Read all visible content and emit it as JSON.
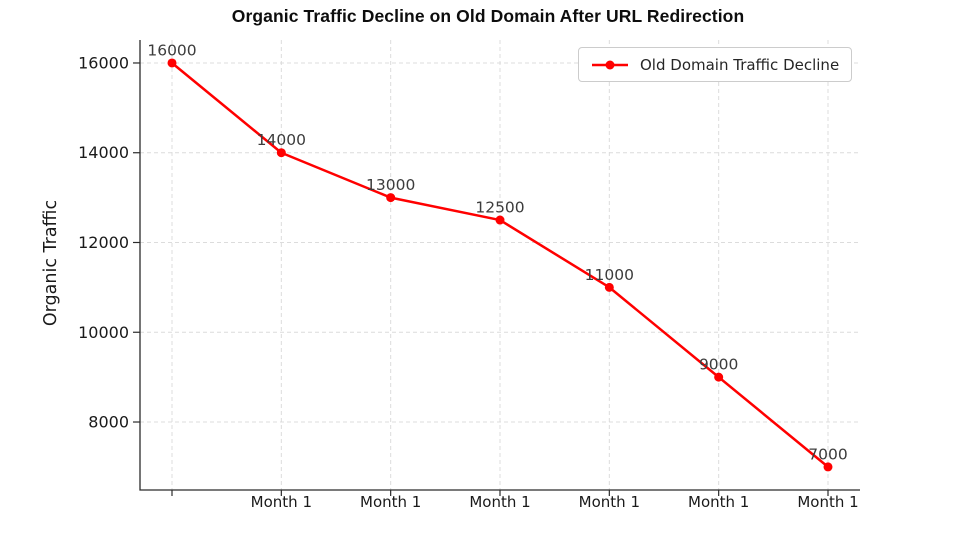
{
  "chart_data": {
    "type": "line",
    "title": "Organic Traffic Decline on Old Domain After URL Redirection",
    "xlabel": "",
    "ylabel": "Organic Traffic",
    "x_tick_labels": [
      "",
      "Month 1",
      "Month 1",
      "Month 1",
      "Month 1",
      "Month 1",
      "Month 1"
    ],
    "y_ticks": [
      8000,
      10000,
      12000,
      14000,
      16000
    ],
    "y_tick_labels": [
      "8000",
      "10000",
      "12000",
      "14000",
      "16000"
    ],
    "ylim": [
      6485,
      16512
    ],
    "grid": true,
    "grid_style": "dashed",
    "legend": {
      "position": "upper right"
    },
    "series": [
      {
        "name": "Old Domain Traffic Decline",
        "color": "#ff0000",
        "marker": "circle",
        "values": [
          16000,
          14000,
          13000,
          12500,
          11000,
          9000,
          7000
        ],
        "point_labels": [
          "16000",
          "14000",
          "13000",
          "12500",
          "11000",
          "9000",
          "7000"
        ]
      }
    ],
    "colors": {
      "series": "#ff0000",
      "grid": "#dcdcdc",
      "spine": "#2b2b2b",
      "tick_label": "#1a1a1a",
      "point_label": "#3c3c3c",
      "title": "#0d0d0d",
      "legend_border": "#cccccc",
      "background": "#ffffff"
    }
  }
}
